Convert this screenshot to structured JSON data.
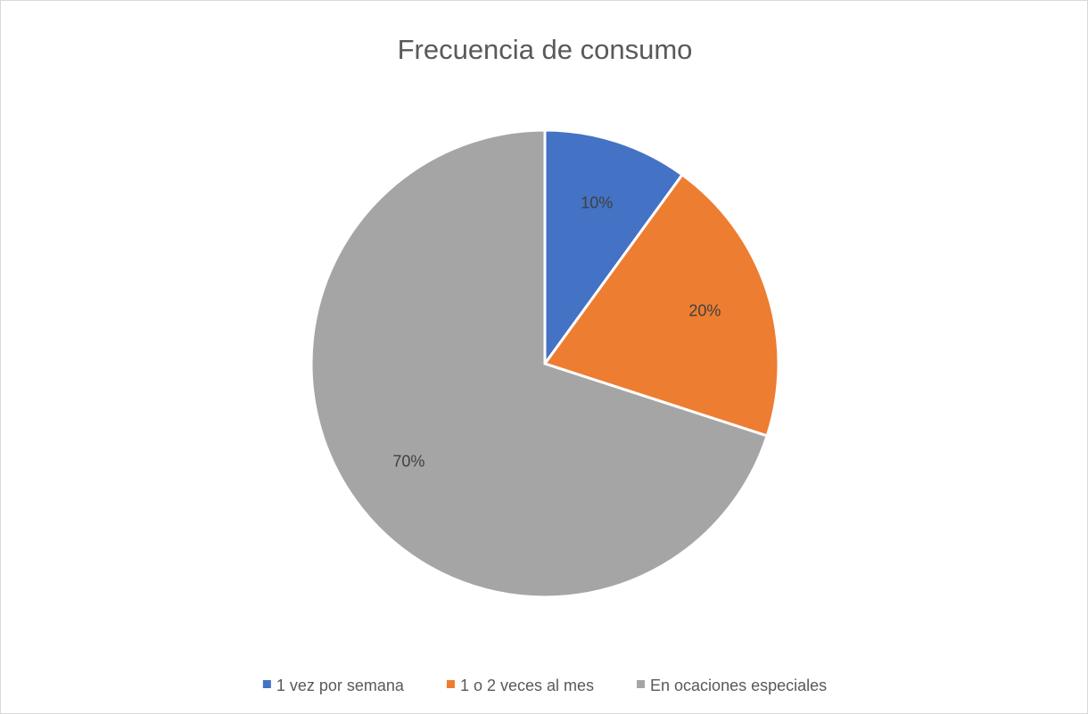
{
  "chart_data": {
    "type": "pie",
    "title": "Frecuencia de consumo",
    "categories": [
      "1 vez por semana",
      "1 o 2 veces al mes",
      "En ocaciones especiales"
    ],
    "values": [
      10,
      20,
      70
    ],
    "value_labels": [
      "10%",
      "20%",
      "70%"
    ],
    "colors": [
      "#4472c4",
      "#ed7d31",
      "#a5a5a5"
    ],
    "legend": "bottom"
  }
}
